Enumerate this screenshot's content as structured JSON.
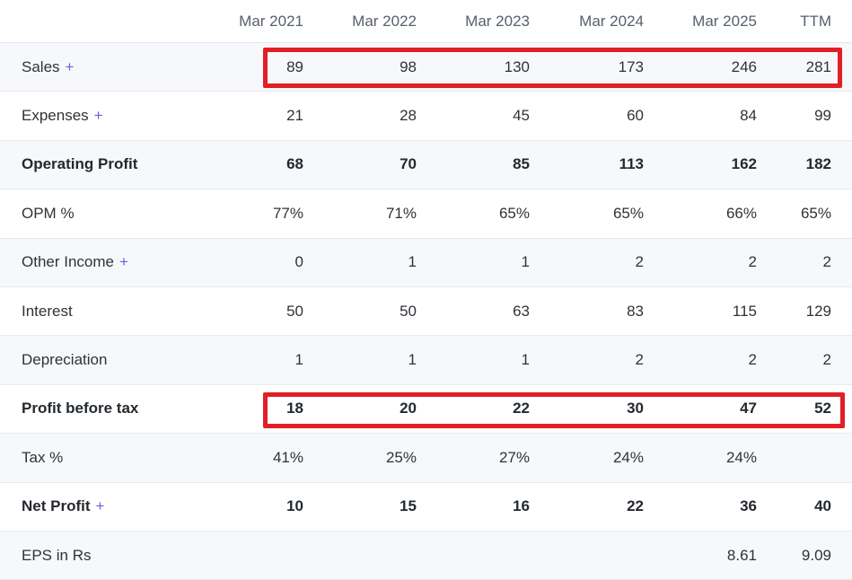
{
  "table": {
    "plus_symbol": "+",
    "columns": [
      "Mar 2021",
      "Mar 2022",
      "Mar 2023",
      "Mar 2024",
      "Mar 2025",
      "TTM"
    ],
    "rows": [
      {
        "label": "Sales",
        "plus": true,
        "bold": false,
        "values": [
          "89",
          "98",
          "130",
          "173",
          "246",
          "281"
        ]
      },
      {
        "label": "Expenses",
        "plus": true,
        "bold": false,
        "values": [
          "21",
          "28",
          "45",
          "60",
          "84",
          "99"
        ]
      },
      {
        "label": "Operating Profit",
        "plus": false,
        "bold": true,
        "values": [
          "68",
          "70",
          "85",
          "113",
          "162",
          "182"
        ]
      },
      {
        "label": "OPM %",
        "plus": false,
        "bold": false,
        "values": [
          "77%",
          "71%",
          "65%",
          "65%",
          "66%",
          "65%"
        ]
      },
      {
        "label": "Other Income",
        "plus": true,
        "bold": false,
        "values": [
          "0",
          "1",
          "1",
          "2",
          "2",
          "2"
        ]
      },
      {
        "label": "Interest",
        "plus": false,
        "bold": false,
        "values": [
          "50",
          "50",
          "63",
          "83",
          "115",
          "129"
        ]
      },
      {
        "label": "Depreciation",
        "plus": false,
        "bold": false,
        "values": [
          "1",
          "1",
          "1",
          "2",
          "2",
          "2"
        ]
      },
      {
        "label": "Profit before tax",
        "plus": false,
        "bold": true,
        "values": [
          "18",
          "20",
          "22",
          "30",
          "47",
          "52"
        ]
      },
      {
        "label": "Tax %",
        "plus": false,
        "bold": false,
        "values": [
          "41%",
          "25%",
          "27%",
          "24%",
          "24%",
          ""
        ]
      },
      {
        "label": "Net Profit",
        "plus": true,
        "bold": true,
        "values": [
          "10",
          "15",
          "16",
          "22",
          "36",
          "40"
        ]
      },
      {
        "label": "EPS in Rs",
        "plus": false,
        "bold": false,
        "values": [
          "",
          "",
          "",
          "",
          "8.61",
          "9.09"
        ]
      }
    ]
  },
  "annotations": {
    "highlight_color": "#e01f26",
    "highlighted_rows": [
      "Sales",
      "Profit before tax"
    ]
  },
  "colors": {
    "plus_accent": "#6c5ce7",
    "stripe_background": "#f7f8fb",
    "row_border": "#e7eaf1",
    "header_text": "#57606d",
    "body_text": "#2e3338"
  }
}
